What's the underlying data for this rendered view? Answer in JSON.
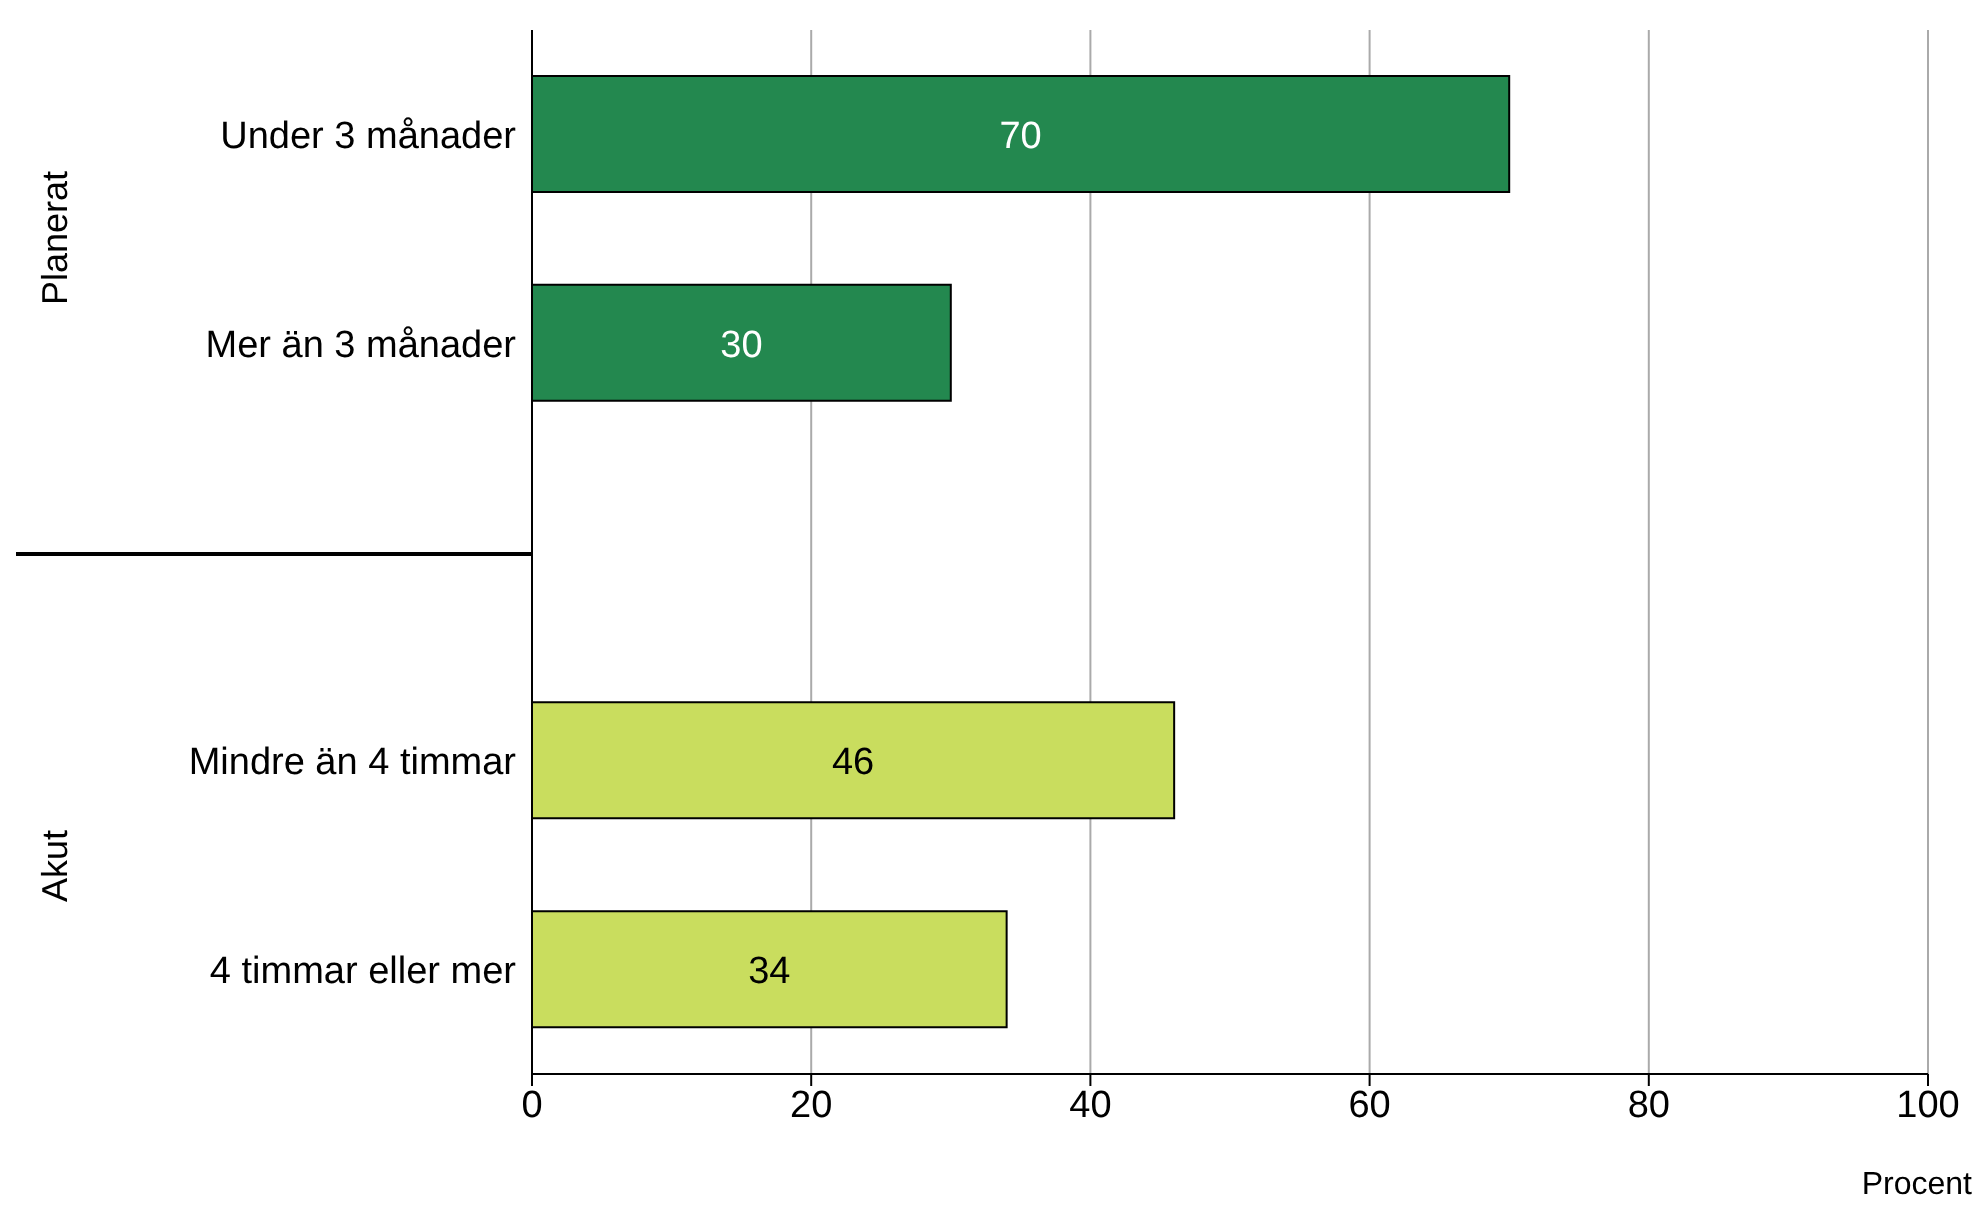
{
  "chart_data": {
    "type": "bar",
    "orientation": "horizontal",
    "categories": [
      "Under 3 månader",
      "Mer än 3 månader",
      null,
      "Mindre än 4 timmar",
      "4 timmar eller mer"
    ],
    "values": [
      70,
      30,
      null,
      46,
      34
    ],
    "colors": [
      "#23884f",
      "#23884f",
      "#23884f",
      "#c9dd5e",
      "#c9dd5e"
    ],
    "xlim": [
      0,
      100
    ],
    "xticks": [
      0,
      20,
      40,
      60,
      80,
      100
    ],
    "xlabel": "Procent",
    "grid": "x",
    "data_labels": true,
    "annotations": [
      "Planerat",
      "Akut"
    ]
  }
}
